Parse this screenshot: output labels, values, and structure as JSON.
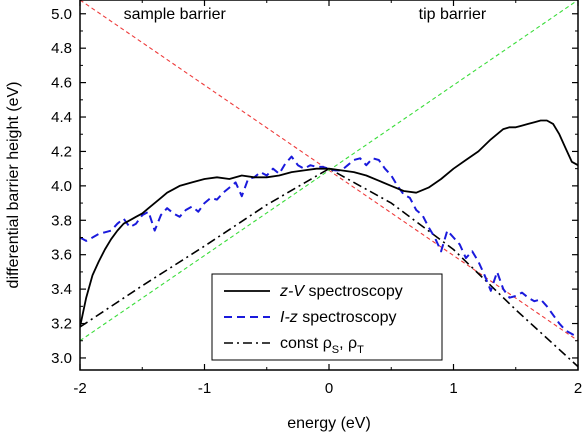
{
  "chart_data": {
    "type": "line",
    "xlabel": "energy (eV)",
    "ylabel": "differential barrier height (eV)",
    "xlim": [
      -2,
      2
    ],
    "ylim": [
      2.93,
      5.08
    ],
    "xticks": [
      -2,
      -1,
      0,
      1,
      2
    ],
    "xtick_labels": [
      "-2",
      "-1",
      "0",
      "1",
      "2"
    ],
    "yticks": [
      3.0,
      3.2,
      3.4,
      3.6,
      3.8,
      4.0,
      4.2,
      4.4,
      4.6,
      4.8,
      5.0
    ],
    "ytick_labels": [
      "3.0",
      "3.2",
      "3.4",
      "3.6",
      "3.8",
      "4.0",
      "4.2",
      "4.4",
      "4.6",
      "4.8",
      "5.0"
    ],
    "annotations": [
      {
        "text": "sample barrier",
        "x": -1.65,
        "y": 4.97
      },
      {
        "text": "tip barrier",
        "x": 0.72,
        "y": 4.97
      }
    ],
    "legend": {
      "position": "bottom-center",
      "entries": [
        {
          "series": 0,
          "italic": "z-V",
          "rest": " spectroscopy"
        },
        {
          "series": 1,
          "italic": "I-z",
          "rest": " spectroscopy"
        },
        {
          "series": 2,
          "plain": "const ρ",
          "sub1": "S",
          "mid": ", ρ",
          "sub2": "T"
        }
      ]
    },
    "series": [
      {
        "name": "z-V spectroscopy",
        "color": "#000000",
        "style": "solid",
        "x": [
          -2.0,
          -1.95,
          -1.9,
          -1.85,
          -1.8,
          -1.75,
          -1.7,
          -1.65,
          -1.6,
          -1.55,
          -1.5,
          -1.45,
          -1.4,
          -1.35,
          -1.3,
          -1.25,
          -1.2,
          -1.1,
          -1.0,
          -0.9,
          -0.8,
          -0.7,
          -0.6,
          -0.5,
          -0.4,
          -0.3,
          -0.2,
          -0.1,
          0.0,
          0.1,
          0.2,
          0.3,
          0.4,
          0.5,
          0.6,
          0.7,
          0.8,
          0.9,
          1.0,
          1.1,
          1.2,
          1.3,
          1.4,
          1.45,
          1.5,
          1.55,
          1.6,
          1.65,
          1.7,
          1.75,
          1.8,
          1.85,
          1.9,
          1.95,
          2.0
        ],
        "y": [
          3.18,
          3.35,
          3.48,
          3.56,
          3.63,
          3.69,
          3.74,
          3.78,
          3.8,
          3.82,
          3.84,
          3.87,
          3.9,
          3.93,
          3.96,
          3.98,
          4.0,
          4.02,
          4.04,
          4.05,
          4.04,
          4.06,
          4.05,
          4.05,
          4.06,
          4.08,
          4.09,
          4.1,
          4.1,
          4.09,
          4.08,
          4.06,
          4.03,
          4.0,
          3.97,
          3.96,
          3.99,
          4.04,
          4.1,
          4.15,
          4.2,
          4.27,
          4.33,
          4.34,
          4.34,
          4.35,
          4.36,
          4.37,
          4.38,
          4.38,
          4.36,
          4.3,
          4.22,
          4.14,
          4.12
        ]
      },
      {
        "name": "I-z spectroscopy",
        "color": "#1a1adc",
        "style": "dashed",
        "x": [
          -2.0,
          -1.95,
          -1.9,
          -1.85,
          -1.8,
          -1.75,
          -1.7,
          -1.65,
          -1.6,
          -1.55,
          -1.5,
          -1.45,
          -1.4,
          -1.35,
          -1.3,
          -1.25,
          -1.2,
          -1.15,
          -1.1,
          -1.05,
          -1.0,
          -0.95,
          -0.9,
          -0.85,
          -0.8,
          -0.75,
          -0.7,
          -0.65,
          -0.6,
          -0.55,
          -0.5,
          -0.45,
          -0.4,
          -0.35,
          -0.3,
          -0.25,
          -0.2,
          -0.15,
          -0.1,
          -0.05,
          0.0,
          0.05,
          0.1,
          0.15,
          0.2,
          0.25,
          0.3,
          0.35,
          0.4,
          0.45,
          0.5,
          0.55,
          0.6,
          0.65,
          0.7,
          0.75,
          0.8,
          0.85,
          0.9,
          0.95,
          1.0,
          1.05,
          1.1,
          1.15,
          1.2,
          1.25,
          1.3,
          1.35,
          1.4,
          1.45,
          1.5,
          1.55,
          1.6,
          1.65,
          1.7,
          1.75,
          1.8,
          1.85,
          1.9,
          1.95,
          2.0
        ],
        "y": [
          3.7,
          3.68,
          3.7,
          3.72,
          3.73,
          3.74,
          3.78,
          3.81,
          3.76,
          3.78,
          3.83,
          3.85,
          3.74,
          3.83,
          3.87,
          3.84,
          3.82,
          3.86,
          3.88,
          3.85,
          3.9,
          3.93,
          3.92,
          3.96,
          3.99,
          4.02,
          3.94,
          4.04,
          4.05,
          4.08,
          4.06,
          4.1,
          4.07,
          4.13,
          4.17,
          4.12,
          4.1,
          4.12,
          4.11,
          4.11,
          4.1,
          4.09,
          4.09,
          4.12,
          4.15,
          4.16,
          4.12,
          4.16,
          4.15,
          4.1,
          4.06,
          4.0,
          3.95,
          3.93,
          3.86,
          3.83,
          3.76,
          3.7,
          3.62,
          3.74,
          3.7,
          3.66,
          3.58,
          3.62,
          3.56,
          3.48,
          3.39,
          3.5,
          3.4,
          3.35,
          3.36,
          3.38,
          3.35,
          3.33,
          3.34,
          3.3,
          3.25,
          3.2,
          3.16,
          3.14,
          3.12
        ]
      },
      {
        "name": "const ρS, ρT",
        "color": "#000000",
        "style": "dashdot",
        "x": [
          -2.0,
          -1.5,
          -1.0,
          -0.5,
          0.0,
          0.5,
          1.0,
          1.5,
          2.0
        ],
        "y": [
          3.18,
          3.42,
          3.65,
          3.89,
          4.1,
          3.9,
          3.63,
          3.28,
          2.95
        ]
      },
      {
        "name": "",
        "color": "#ee3b3b",
        "style": "dotted",
        "x": [
          -2.0,
          2.0
        ],
        "y": [
          5.08,
          3.1
        ]
      },
      {
        "name": "",
        "color": "#3bdd3b",
        "style": "dotted",
        "x": [
          -2.0,
          2.0
        ],
        "y": [
          3.1,
          5.08
        ]
      }
    ]
  }
}
